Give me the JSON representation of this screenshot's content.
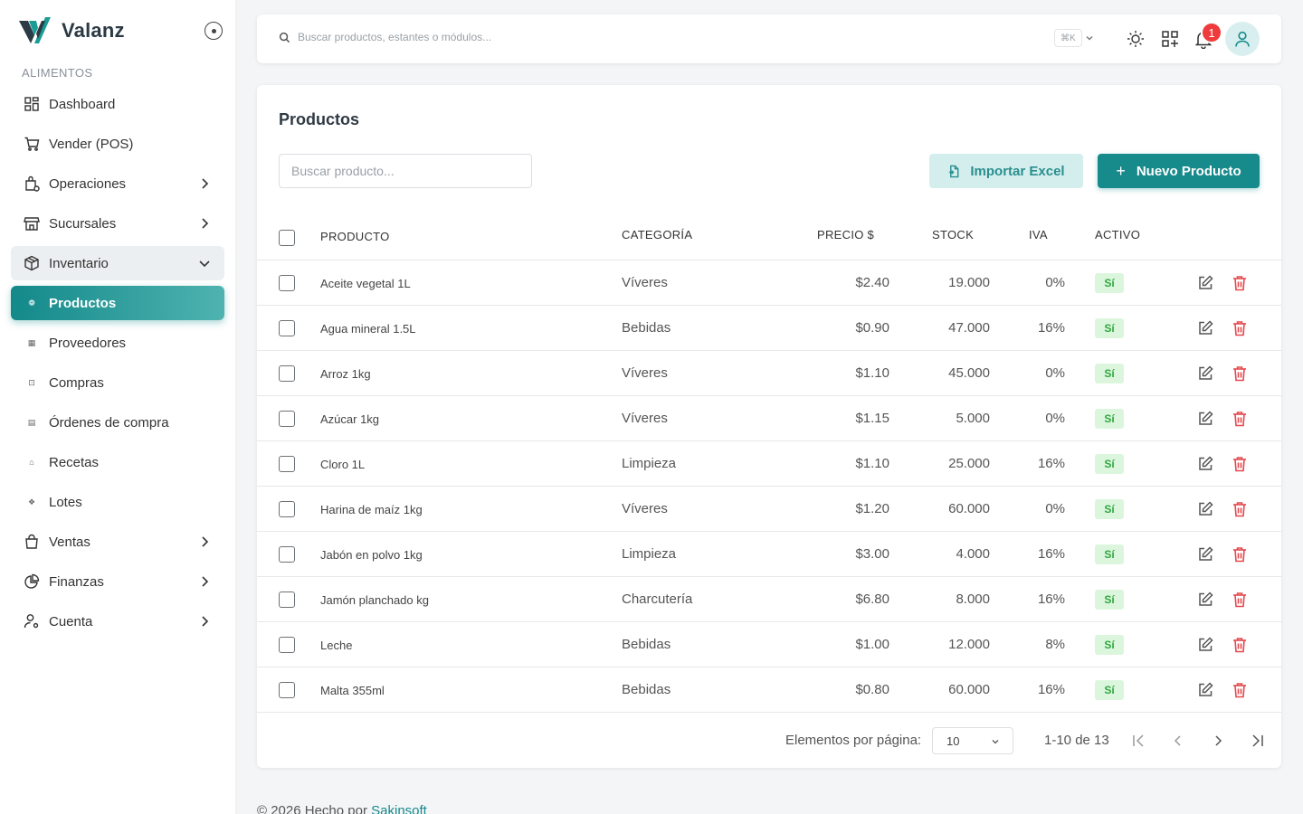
{
  "app": {
    "name": "Valanz",
    "section": "ALIMENTOS",
    "brand_color": "#178a8b"
  },
  "topbar": {
    "search_placeholder": "Buscar productos, estantes o módulos...",
    "shortcut": "⌘K",
    "notifications_count": "1"
  },
  "sidebar": {
    "items": [
      {
        "label": "Dashboard",
        "icon": "dashboard-icon"
      },
      {
        "label": "Vender (POS)",
        "icon": "cart-icon"
      },
      {
        "label": "Operaciones",
        "icon": "operations-icon",
        "has_children": true
      },
      {
        "label": "Sucursales",
        "icon": "store-icon",
        "has_children": true
      },
      {
        "label": "Inventario",
        "icon": "box-icon",
        "expanded": true
      },
      {
        "label": "Productos",
        "icon": "product-icon",
        "active": true
      },
      {
        "label": "Proveedores",
        "icon": "supplier-icon"
      },
      {
        "label": "Compras",
        "icon": "purchases-icon"
      },
      {
        "label": "Órdenes de compra",
        "icon": "order-icon"
      },
      {
        "label": "Recetas",
        "icon": "recipe-icon"
      },
      {
        "label": "Lotes",
        "icon": "lots-icon"
      },
      {
        "label": "Ventas",
        "icon": "shopping-bag-icon",
        "has_children": true
      },
      {
        "label": "Finanzas",
        "icon": "pie-chart-icon",
        "has_children": true
      },
      {
        "label": "Cuenta",
        "icon": "user-settings-icon",
        "has_children": true
      }
    ]
  },
  "main": {
    "title": "Productos",
    "search_placeholder": "Buscar producto...",
    "import_label": "Importar Excel",
    "new_label": "Nuevo Producto",
    "columns": [
      "PRODUCTO",
      "CATEGORÍA",
      "PRECIO $",
      "STOCK",
      "IVA",
      "ACTIVO"
    ],
    "rows": [
      {
        "product": "Aceite vegetal 1L",
        "category": "Víveres",
        "price": "$2.40",
        "stock": "19.000",
        "iva": "0%",
        "active": "Sí"
      },
      {
        "product": "Agua mineral 1.5L",
        "category": "Bebidas",
        "price": "$0.90",
        "stock": "47.000",
        "iva": "16%",
        "active": "Sí"
      },
      {
        "product": "Arroz 1kg",
        "category": "Víveres",
        "price": "$1.10",
        "stock": "45.000",
        "iva": "0%",
        "active": "Sí"
      },
      {
        "product": "Azúcar 1kg",
        "category": "Víveres",
        "price": "$1.15",
        "stock": "5.000",
        "iva": "0%",
        "active": "Sí"
      },
      {
        "product": "Cloro 1L",
        "category": "Limpieza",
        "price": "$1.10",
        "stock": "25.000",
        "iva": "16%",
        "active": "Sí"
      },
      {
        "product": "Harina de maíz 1kg",
        "category": "Víveres",
        "price": "$1.20",
        "stock": "60.000",
        "iva": "0%",
        "active": "Sí"
      },
      {
        "product": "Jabón en polvo 1kg",
        "category": "Limpieza",
        "price": "$3.00",
        "stock": "4.000",
        "iva": "16%",
        "active": "Sí"
      },
      {
        "product": "Jamón planchado kg",
        "category": "Charcutería",
        "price": "$6.80",
        "stock": "8.000",
        "iva": "16%",
        "active": "Sí"
      },
      {
        "product": "Leche",
        "category": "Bebidas",
        "price": "$1.00",
        "stock": "12.000",
        "iva": "8%",
        "active": "Sí"
      },
      {
        "product": "Malta 355ml",
        "category": "Bebidas",
        "price": "$0.80",
        "stock": "60.000",
        "iva": "16%",
        "active": "Sí"
      }
    ],
    "pagination": {
      "per_page_label": "Elementos por página:",
      "per_page_value": "10",
      "range": "1-10 de 13"
    }
  },
  "footer": {
    "text": "© 2026 Hecho por ",
    "link": "Sakinsoft"
  }
}
